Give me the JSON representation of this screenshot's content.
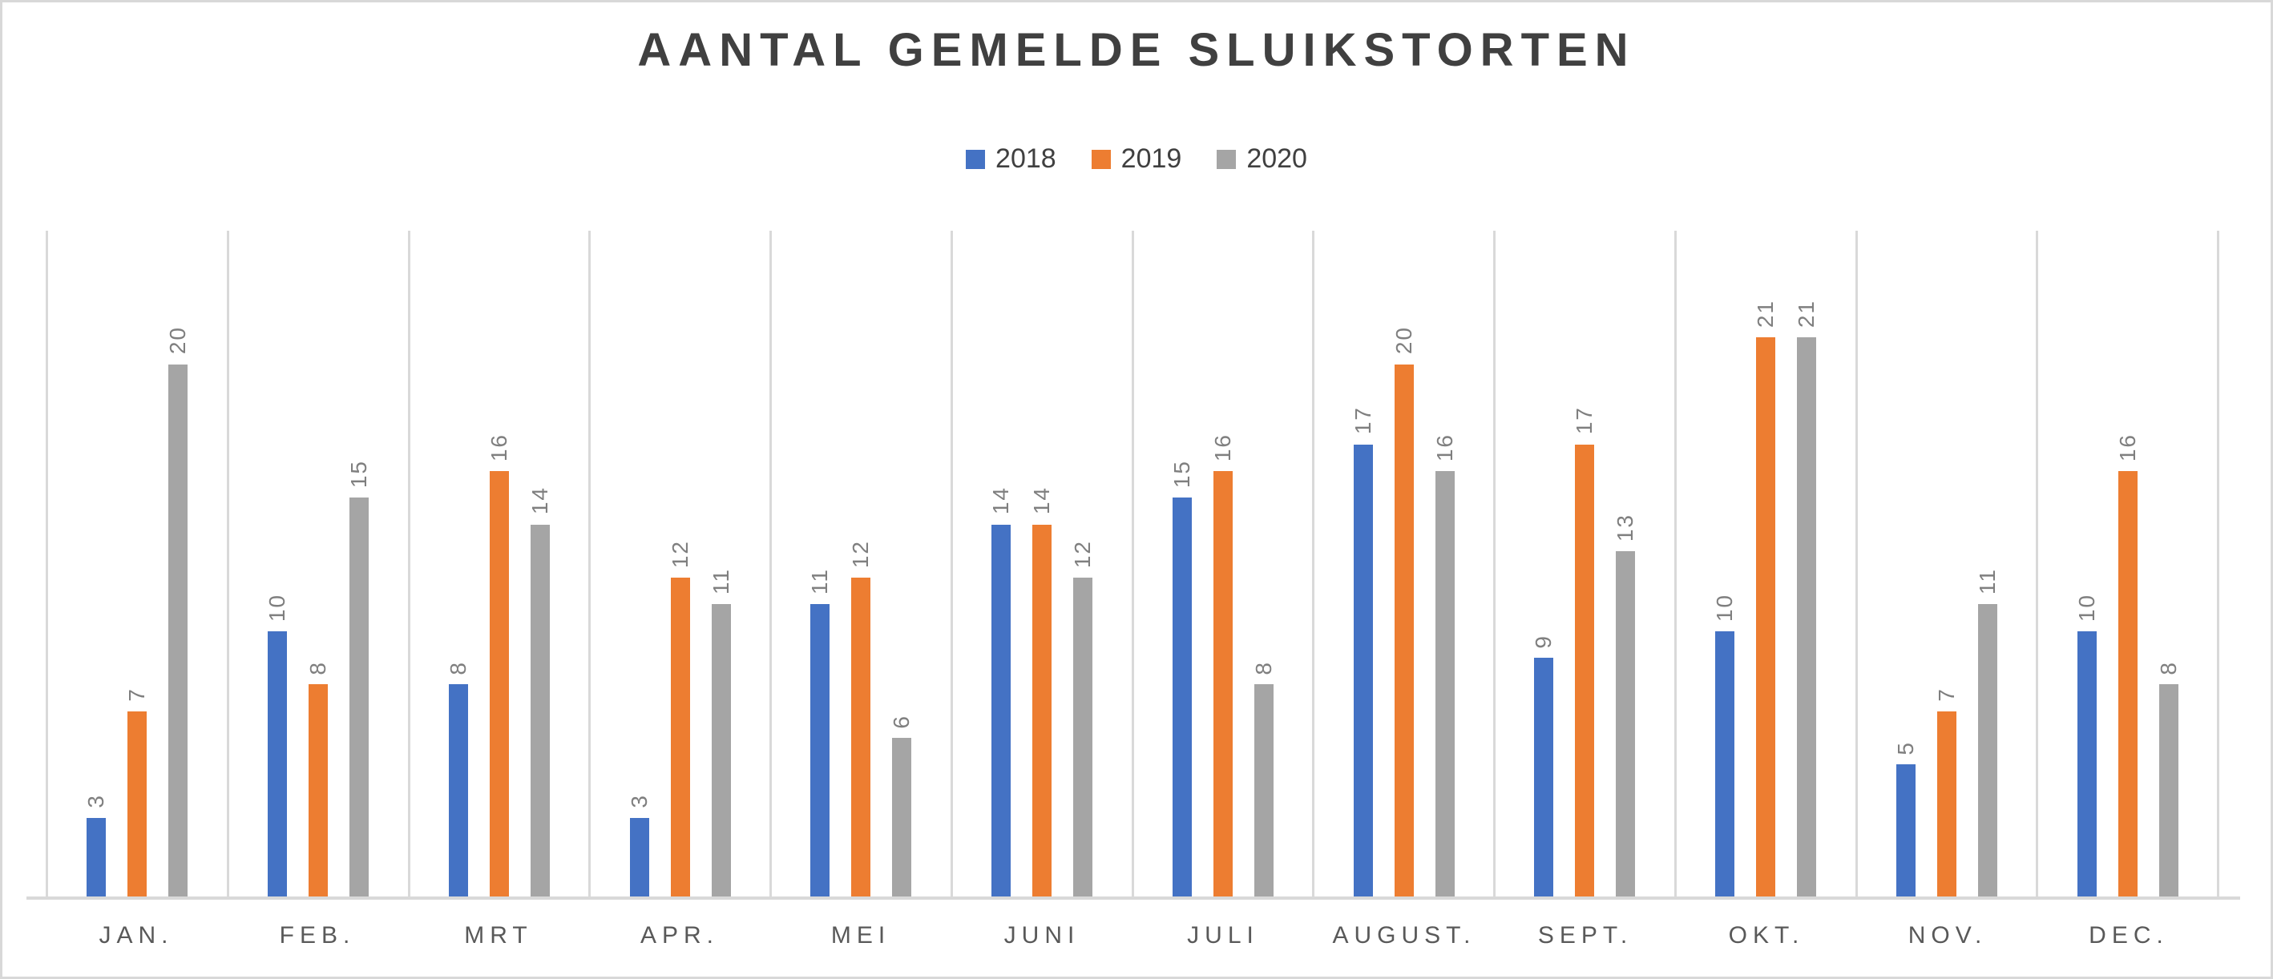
{
  "chart_data": {
    "type": "bar",
    "title": "AANTAL GEMELDE SLUIKSTORTEN",
    "categories": [
      "JAN.",
      "FEB.",
      "MRT",
      "APR.",
      "MEI",
      "JUNI",
      "JULI",
      "AUGUST.",
      "SEPT.",
      "OKT.",
      "NOV.",
      "DEC."
    ],
    "series": [
      {
        "name": "2018",
        "color": "#4472C4",
        "values": [
          3,
          10,
          8,
          3,
          11,
          14,
          15,
          17,
          9,
          10,
          5,
          10
        ]
      },
      {
        "name": "2019",
        "color": "#ED7D31",
        "values": [
          7,
          8,
          16,
          12,
          12,
          14,
          16,
          20,
          17,
          21,
          7,
          16
        ]
      },
      {
        "name": "2020",
        "color": "#A5A5A5",
        "values": [
          20,
          15,
          14,
          11,
          6,
          12,
          8,
          16,
          13,
          21,
          11,
          8
        ]
      }
    ],
    "ylim": [
      0,
      25
    ],
    "xlabel": "",
    "ylabel": "",
    "grid": "vertical-category-gridlines-only",
    "legend_position": "top-center",
    "data_labels": "values-rotated-90-above-bars"
  },
  "ui_colors": {
    "title_text": "#404040",
    "legend_text": "#404040",
    "data_label_text": "#7F7F7F",
    "month_label_text": "#595959",
    "gridline": "#D9D9D9",
    "axis_line": "#D9D9D9",
    "canvas_border": "#D8D8D8",
    "background": "#FFFFFF"
  }
}
